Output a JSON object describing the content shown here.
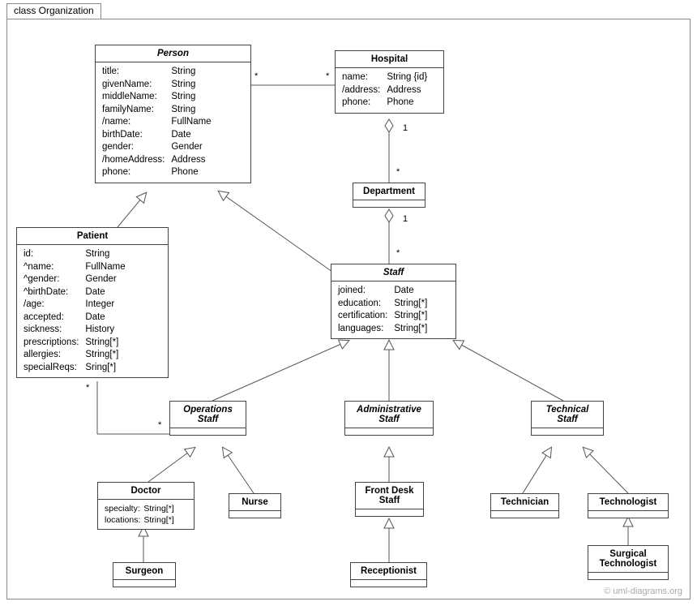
{
  "diagram": {
    "type": "uml-class-diagram",
    "background_color": "#ffffff",
    "border_color": "#888888",
    "class_border_color": "#444444",
    "line_color": "#555555",
    "watermark": "© uml-diagrams.org",
    "frame_label": "class Organization",
    "font_family": "Arial",
    "title_fontsize": 12,
    "attr_fontsize": 11.5,
    "mult_fontsize": 11
  },
  "classes": {
    "person": {
      "name": "Person",
      "abstract": true,
      "attrs": [
        [
          "title:",
          "String"
        ],
        [
          "givenName:",
          "String"
        ],
        [
          "middleName:",
          "String"
        ],
        [
          "familyName:",
          "String"
        ],
        [
          "/name:",
          "FullName"
        ],
        [
          "birthDate:",
          "Date"
        ],
        [
          "gender:",
          "Gender"
        ],
        [
          "/homeAddress:",
          "Address"
        ],
        [
          "phone:",
          "Phone"
        ]
      ]
    },
    "hospital": {
      "name": "Hospital",
      "attrs": [
        [
          "name:",
          "String {id}"
        ],
        [
          "/address:",
          "Address"
        ],
        [
          "phone:",
          "Phone"
        ]
      ]
    },
    "department": {
      "name": "Department"
    },
    "patient": {
      "name": "Patient",
      "attrs": [
        [
          "id:",
          "String"
        ],
        [
          "^name:",
          "FullName"
        ],
        [
          "^gender:",
          "Gender"
        ],
        [
          "^birthDate:",
          "Date"
        ],
        [
          "/age:",
          "Integer"
        ],
        [
          "accepted:",
          "Date"
        ],
        [
          "sickness:",
          "History"
        ],
        [
          "prescriptions:",
          "String[*]"
        ],
        [
          "allergies:",
          "String[*]"
        ],
        [
          "specialReqs:",
          "Sring[*]"
        ]
      ]
    },
    "staff": {
      "name": "Staff",
      "abstract": true,
      "attrs": [
        [
          "joined:",
          "Date"
        ],
        [
          "education:",
          "String[*]"
        ],
        [
          "certification:",
          "String[*]"
        ],
        [
          "languages:",
          "String[*]"
        ]
      ]
    },
    "opstaff": {
      "name": "Operations\nStaff",
      "abstract": true
    },
    "adminstaff": {
      "name": "Administrative\nStaff",
      "abstract": true
    },
    "techstaff": {
      "name": "Technical\nStaff",
      "abstract": true
    },
    "doctor": {
      "name": "Doctor",
      "attrs": [
        [
          "specialty:",
          "String[*]"
        ],
        [
          "locations:",
          "String[*]"
        ]
      ]
    },
    "nurse": {
      "name": "Nurse"
    },
    "frontdesk": {
      "name": "Front Desk\nStaff"
    },
    "receptionist": {
      "name": "Receptionist"
    },
    "technician": {
      "name": "Technician"
    },
    "technologist": {
      "name": "Technologist"
    },
    "surgeon": {
      "name": "Surgeon"
    },
    "surgtech": {
      "name": "Surgical\nTechnologist"
    }
  },
  "multiplicities": {
    "m1": "*",
    "m2": "*",
    "m3": "1",
    "m4": "*",
    "m5": "1",
    "m6": "*",
    "m7": "*",
    "m8": "*"
  }
}
